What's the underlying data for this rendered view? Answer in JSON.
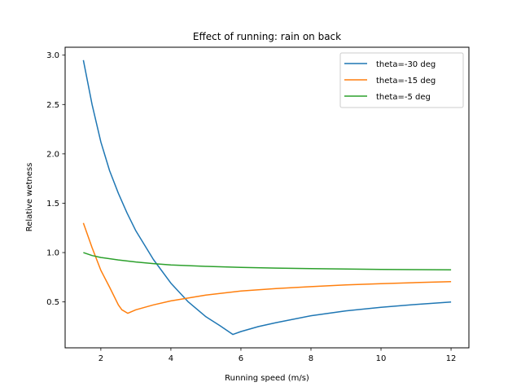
{
  "chart_data": {
    "type": "line",
    "title": "Effect of running: rain on back",
    "xlabel": "Running speed (m/s)",
    "ylabel": "Relative wetness",
    "xlim": [
      0.98,
      12.51
    ],
    "ylim": [
      0.035,
      3.08
    ],
    "xticks": [
      2,
      4,
      6,
      8,
      10,
      12
    ],
    "xtick_labels": [
      "2",
      "4",
      "6",
      "8",
      "10",
      "12"
    ],
    "yticks": [
      0.5,
      1.0,
      1.5,
      2.0,
      2.5,
      3.0
    ],
    "ytick_labels": [
      "0.5",
      "1.0",
      "1.5",
      "2.0",
      "2.5",
      "3.0"
    ],
    "grid": false,
    "legend_position": "top-right",
    "series": [
      {
        "name": "theta=-30 deg",
        "color": "#1f77b4",
        "x": [
          1.5,
          1.75,
          2.0,
          2.25,
          2.5,
          2.75,
          3.0,
          3.5,
          4.0,
          4.5,
          5.0,
          5.4,
          5.77,
          6.0,
          6.5,
          7.0,
          8.0,
          9.0,
          10.0,
          11.0,
          12.0
        ],
        "y": [
          2.95,
          2.5,
          2.12,
          1.83,
          1.6,
          1.4,
          1.22,
          0.93,
          0.69,
          0.5,
          0.35,
          0.26,
          0.17,
          0.2,
          0.25,
          0.29,
          0.36,
          0.41,
          0.445,
          0.475,
          0.5
        ]
      },
      {
        "name": "theta=-15 deg",
        "color": "#ff7f0e",
        "x": [
          1.5,
          1.75,
          2.0,
          2.25,
          2.5,
          2.6,
          2.77,
          3.0,
          3.5,
          4.0,
          5.0,
          6.0,
          7.0,
          8.0,
          9.0,
          10.0,
          11.0,
          12.0
        ],
        "y": [
          1.3,
          1.05,
          0.82,
          0.65,
          0.47,
          0.42,
          0.385,
          0.42,
          0.47,
          0.51,
          0.57,
          0.61,
          0.635,
          0.655,
          0.672,
          0.685,
          0.696,
          0.705
        ]
      },
      {
        "name": "theta=-5 deg",
        "color": "#2ca02c",
        "x": [
          1.5,
          1.75,
          2.0,
          2.5,
          3.0,
          3.5,
          4.0,
          5.0,
          6.0,
          7.0,
          8.0,
          9.0,
          10.0,
          11.0,
          12.0
        ],
        "y": [
          1.0,
          0.97,
          0.95,
          0.925,
          0.905,
          0.888,
          0.875,
          0.86,
          0.85,
          0.843,
          0.838,
          0.834,
          0.83,
          0.827,
          0.825
        ]
      }
    ]
  }
}
